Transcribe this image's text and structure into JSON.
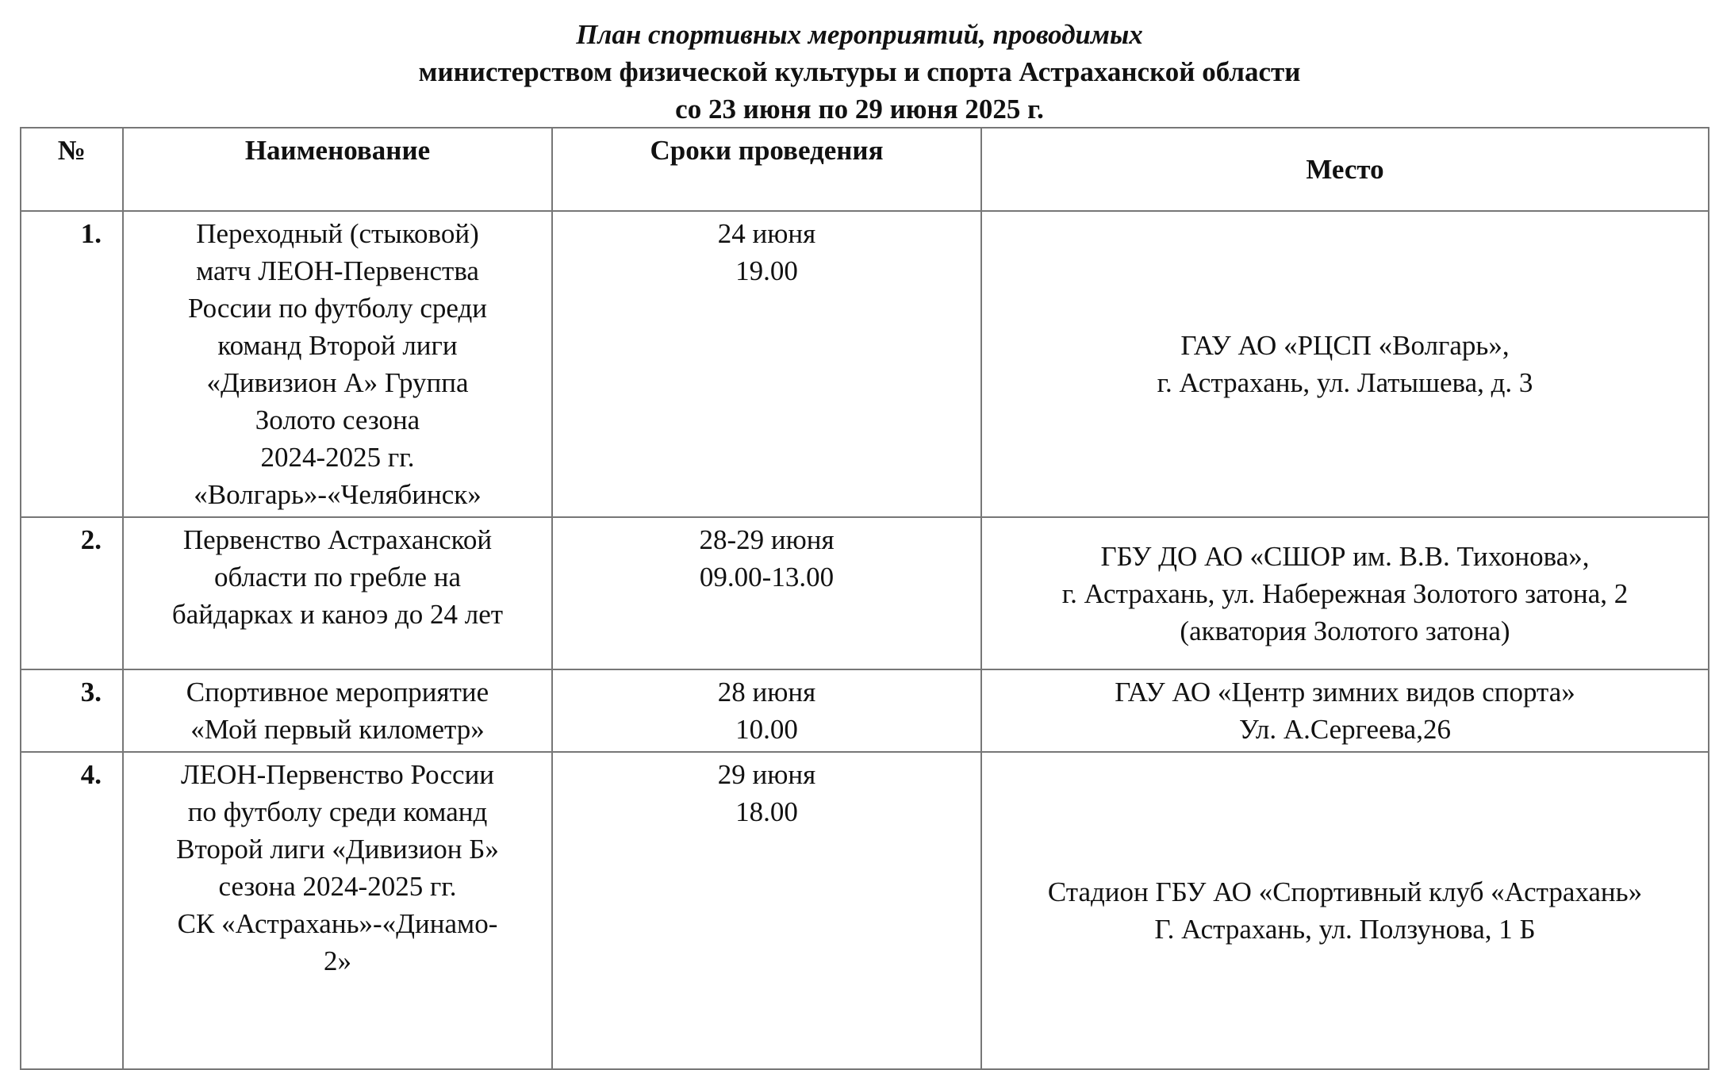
{
  "title": {
    "line1": "План спортивных мероприятий, проводимых",
    "line2": "министерством физической культуры и спорта Астраханской области",
    "line3": "со 23 июня по 29 июня 2025 г."
  },
  "table": {
    "headers": {
      "num": "№",
      "name": "Наименование",
      "dates": "Сроки проведения",
      "place": "Место"
    },
    "rows": [
      {
        "num": "1.",
        "name": [
          "Переходный (стыковой)",
          "матч ЛЕОН-Первенства",
          "России по футболу среди",
          "команд Второй лиги",
          "«Дивизион А» Группа",
          "Золото сезона",
          "2024-2025 гг.",
          "«Волгарь»-«Челябинск»"
        ],
        "dates": [
          "24 июня",
          "19.00"
        ],
        "place": [
          "ГАУ АО «РЦСП «Волгарь»,",
          "г. Астрахань, ул. Латышева, д. 3"
        ]
      },
      {
        "num": "2.",
        "name": [
          "Первенство Астраханской",
          "области по гребле на",
          "байдарках и каноэ до 24 лет"
        ],
        "dates": [
          "28-29 июня",
          "09.00-13.00"
        ],
        "place": [
          "ГБУ ДО АО «СШОР им. В.В. Тихонова»,",
          "г. Астрахань, ул. Набережная Золотого затона, 2",
          "(акватория Золотого затона)"
        ]
      },
      {
        "num": "3.",
        "name": [
          "Спортивное мероприятие",
          "«Мой первый километр»"
        ],
        "dates": [
          "28 июня",
          "10.00"
        ],
        "place": [
          "ГАУ АО «Центр зимних видов спорта»",
          "Ул. А.Сергеева,26"
        ]
      },
      {
        "num": "4.",
        "name": [
          "ЛЕОН-Первенство России",
          "по футболу среди команд",
          "Второй лиги «Дивизион Б»",
          "сезона 2024-2025 гг.",
          "СК «Астрахань»-«Динамо-",
          "2»"
        ],
        "dates": [
          "29 июня",
          "18.00"
        ],
        "place": [
          "Стадион ГБУ АО «Спортивный клуб «Астрахань»",
          "Г. Астрахань, ул. Ползунова, 1 Б"
        ]
      }
    ]
  }
}
